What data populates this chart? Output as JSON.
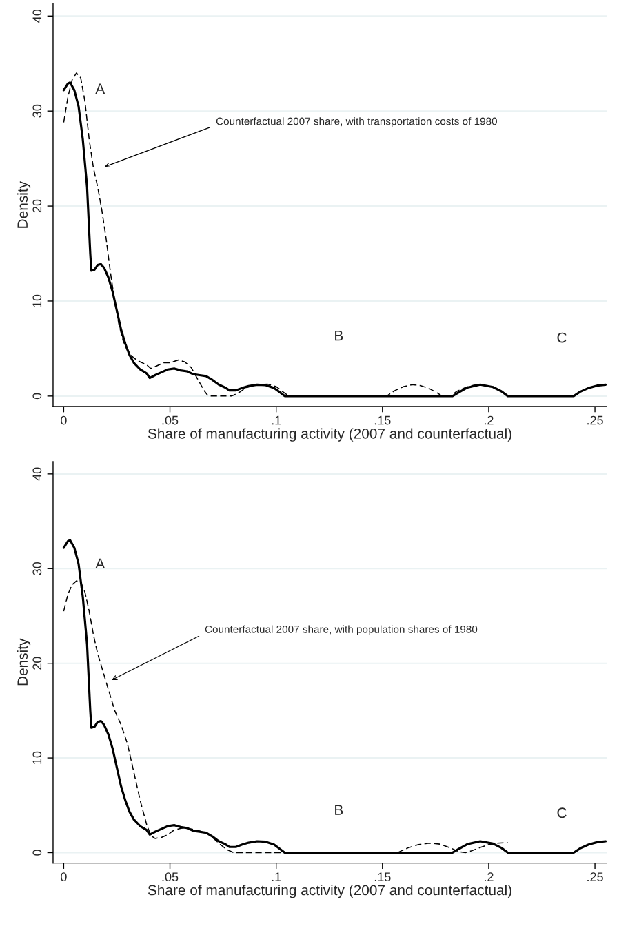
{
  "chart_data": [
    {
      "type": "line",
      "xlabel": "Share of manufacturing activity (2007 and counterfactual)",
      "ylabel": "Density",
      "xlim": [
        -0.005,
        0.2555
      ],
      "ylim": [
        -1.1,
        41.3
      ],
      "xticks": [
        0,
        {
          "value": 0.05,
          "label": ".05"
        },
        {
          "value": 0.1,
          "label": ".1"
        },
        {
          "value": 0.15,
          "label": ".15"
        },
        {
          "value": 0.2,
          "label": ".2"
        },
        {
          "value": 0.25,
          "label": ".25"
        }
      ],
      "yticks": [
        0,
        10,
        20,
        30,
        40
      ],
      "grid": "y",
      "legend": false,
      "series": [
        {
          "color": "#000000",
          "line_style": "solid",
          "x": [
            0,
            0.002,
            0.003,
            0.005,
            0.007,
            0.009,
            0.011,
            0.0125,
            0.013,
            0.0145,
            0.016,
            0.0175,
            0.019,
            0.021,
            0.023,
            0.025,
            0.027,
            0.029,
            0.031,
            0.033,
            0.036,
            0.039,
            0.0405,
            0.043,
            0.046,
            0.049,
            0.052,
            0.055,
            0.058,
            0.061,
            0.064,
            0.067,
            0.07,
            0.073,
            0.076,
            0.078,
            0.081,
            0.084,
            0.087,
            0.091,
            0.095,
            0.099,
            0.102,
            0.104,
            0.183,
            0.186,
            0.19,
            0.196,
            0.202,
            0.206,
            0.209,
            0.24,
            0.243,
            0.247,
            0.251,
            0.255
          ],
          "values": [
            32.2,
            32.9,
            33,
            32.2,
            30.5,
            27,
            22,
            15,
            13.2,
            13.3,
            13.8,
            13.9,
            13.5,
            12.5,
            11,
            9,
            7,
            5.5,
            4.3,
            3.5,
            2.8,
            2.4,
            1.9,
            2.2,
            2.5,
            2.8,
            2.9,
            2.7,
            2.6,
            2.3,
            2.2,
            2.1,
            1.7,
            1.2,
            0.9,
            0.6,
            0.6,
            0.85,
            1.05,
            1.2,
            1.15,
            0.85,
            0.35,
            0,
            0,
            0.4,
            0.9,
            1.2,
            0.95,
            0.5,
            0,
            0,
            0.45,
            0.85,
            1.1,
            1.2
          ]
        },
        {
          "color": "#000000",
          "line_style": "dashed",
          "x": [
            0,
            0.002,
            0.004,
            0.006,
            0.008,
            0.01,
            0.012,
            0.014,
            0.016,
            0.018,
            0.02,
            0.022,
            0.024,
            0.026,
            0.028,
            0.03,
            0.033,
            0.036,
            0.039,
            0.041,
            0.044,
            0.047,
            0.05,
            0.054,
            0.057,
            0.06,
            0.063,
            0.066,
            0.068,
            0.079,
            0.082,
            0.086,
            0.091,
            0.096,
            0.1,
            0.104,
            0.106,
            0.152,
            0.156,
            0.16,
            0.164,
            0.168,
            0.172,
            0.176,
            0.178,
            0.182,
            0.185,
            0.189,
            0.193,
            0.196
          ],
          "values": [
            28.8,
            31.5,
            33.3,
            34,
            33.5,
            31,
            27,
            24,
            22,
            19.5,
            16.5,
            13,
            10,
            7.5,
            5.8,
            4.8,
            4,
            3.6,
            3.3,
            2.9,
            3.2,
            3.5,
            3.5,
            3.8,
            3.6,
            3,
            1.8,
            0.6,
            0,
            0,
            0.3,
            0.9,
            1.2,
            1.25,
            1,
            0.3,
            0,
            0,
            0.6,
            1,
            1.2,
            1.1,
            0.8,
            0.3,
            0,
            0,
            0.5,
            0.9,
            1.15,
            1.2
          ]
        }
      ],
      "annotations": [
        "Counterfactual 2007 share, with transportation costs of 1980",
        "A",
        "B",
        "C"
      ]
    },
    {
      "type": "line",
      "xlabel": "Share of manufacturing activity (2007 and counterfactual)",
      "ylabel": "Density",
      "xlim": [
        -0.005,
        0.2555
      ],
      "ylim": [
        -1.1,
        41.3
      ],
      "xticks": [
        0,
        {
          "value": 0.05,
          "label": ".05"
        },
        {
          "value": 0.1,
          "label": ".1"
        },
        {
          "value": 0.15,
          "label": ".15"
        },
        {
          "value": 0.2,
          "label": ".2"
        },
        {
          "value": 0.25,
          "label": ".25"
        }
      ],
      "yticks": [
        0,
        10,
        20,
        30,
        40
      ],
      "grid": "y",
      "legend": false,
      "series": [
        {
          "color": "#000000",
          "line_style": "solid",
          "x": [
            0,
            0.002,
            0.003,
            0.005,
            0.007,
            0.009,
            0.011,
            0.0125,
            0.013,
            0.0145,
            0.016,
            0.0175,
            0.019,
            0.021,
            0.023,
            0.025,
            0.027,
            0.029,
            0.031,
            0.033,
            0.036,
            0.039,
            0.0405,
            0.043,
            0.046,
            0.049,
            0.052,
            0.055,
            0.058,
            0.061,
            0.064,
            0.067,
            0.07,
            0.073,
            0.076,
            0.078,
            0.081,
            0.084,
            0.087,
            0.091,
            0.095,
            0.099,
            0.102,
            0.104,
            0.183,
            0.186,
            0.19,
            0.196,
            0.202,
            0.206,
            0.209,
            0.24,
            0.243,
            0.247,
            0.251,
            0.255
          ],
          "values": [
            32.2,
            32.9,
            33,
            32.2,
            30.5,
            27,
            22,
            15,
            13.2,
            13.3,
            13.8,
            13.9,
            13.5,
            12.5,
            11,
            9,
            7,
            5.5,
            4.3,
            3.5,
            2.8,
            2.4,
            1.9,
            2.2,
            2.5,
            2.8,
            2.9,
            2.7,
            2.6,
            2.3,
            2.2,
            2.1,
            1.7,
            1.2,
            0.9,
            0.6,
            0.6,
            0.85,
            1.05,
            1.2,
            1.15,
            0.85,
            0.35,
            0,
            0,
            0.4,
            0.9,
            1.2,
            0.95,
            0.5,
            0,
            0,
            0.45,
            0.85,
            1.1,
            1.2
          ]
        },
        {
          "color": "#000000",
          "line_style": "dashed",
          "x": [
            0,
            0.002,
            0.004,
            0.006,
            0.008,
            0.01,
            0.012,
            0.014,
            0.016,
            0.018,
            0.02,
            0.022,
            0.024,
            0.027,
            0.03,
            0.033,
            0.036,
            0.039,
            0.041,
            0.043,
            0.046,
            0.049,
            0.052,
            0.056,
            0.06,
            0.064,
            0.068,
            0.071,
            0.074,
            0.077,
            0.08,
            0.103,
            0.157,
            0.162,
            0.167,
            0.172,
            0.177,
            0.182,
            0.186,
            0.189,
            0.192,
            0.196,
            0.2,
            0.204,
            0.209
          ],
          "values": [
            25.5,
            27.3,
            28.3,
            28.7,
            28.6,
            27.5,
            25.5,
            23,
            21,
            19.5,
            18,
            16.5,
            15,
            13.5,
            11.5,
            8.5,
            5.5,
            3,
            1.8,
            1.5,
            1.6,
            1.9,
            2.4,
            2.6,
            2.5,
            2.3,
            2,
            1.4,
            0.8,
            0.3,
            0,
            0,
            0,
            0.5,
            0.85,
            1,
            0.9,
            0.5,
            0.1,
            0,
            0.2,
            0.55,
            0.85,
            1,
            1.05
          ]
        }
      ],
      "annotations": [
        "Counterfactual 2007 share, with population shares of 1980",
        "A",
        "B",
        "C"
      ]
    }
  ]
}
